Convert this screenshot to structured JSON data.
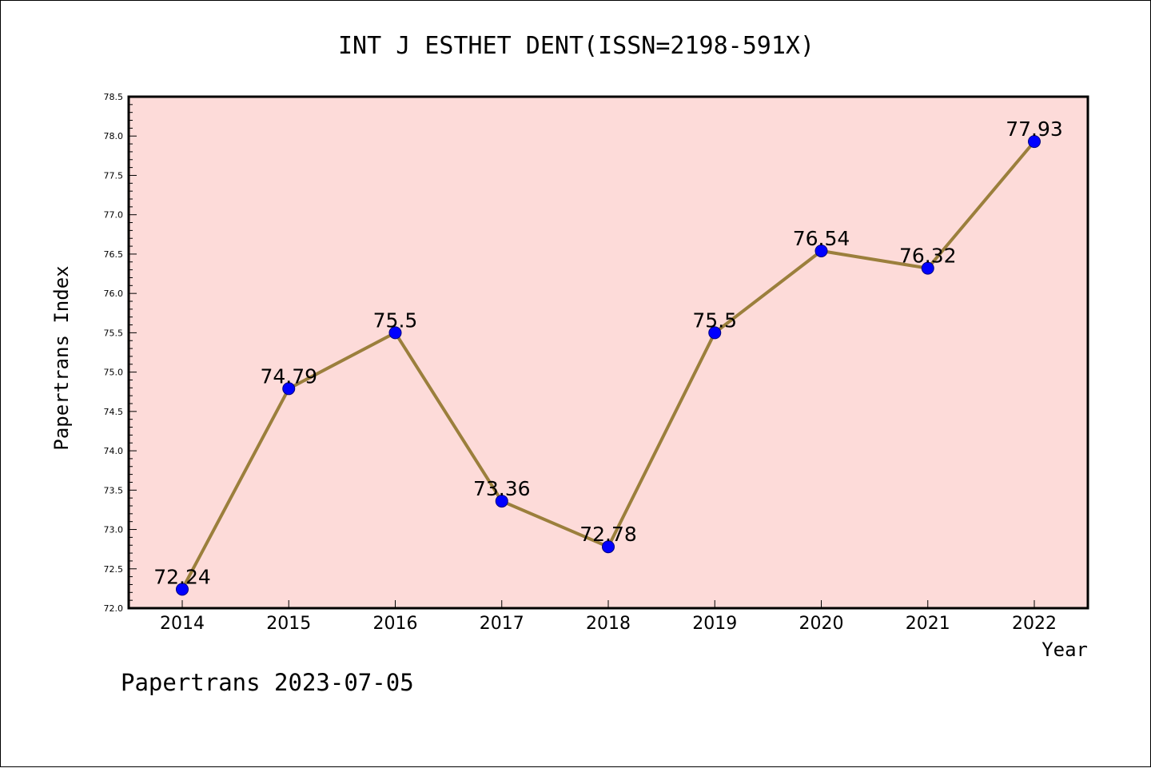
{
  "footer": "Papertrans 2023-07-05",
  "colors": {
    "plot_background": "#fddbd9",
    "line": "#9b7f3c",
    "marker_fill": "#0000ff",
    "marker_edge": "#000080",
    "axis": "#000000"
  },
  "chart_data": {
    "type": "line",
    "title": "INT J ESTHET DENT(ISSN=2198-591X)",
    "xlabel": "Year",
    "ylabel": "Papertrans Index",
    "x": [
      "2014",
      "2015",
      "2016",
      "2017",
      "2018",
      "2019",
      "2020",
      "2021",
      "2022"
    ],
    "series": [
      {
        "values": [
          72.24,
          74.79,
          75.5,
          73.36,
          72.78,
          75.5,
          76.54,
          76.32,
          77.93
        ],
        "labels": [
          "72.24",
          "74.79",
          "75.5",
          "73.36",
          "72.78",
          "75.5",
          "76.54",
          "76.32",
          "77.93"
        ]
      }
    ],
    "ylim": [
      72.0,
      78.5
    ],
    "y_ticks": [
      "72.0",
      "72.5",
      "73.0",
      "73.5",
      "74.0",
      "74.5",
      "75.0",
      "75.5",
      "76.0",
      "76.5",
      "77.0",
      "77.5",
      "78.0",
      "78.5"
    ],
    "markers": true,
    "grid": false,
    "legend": "none"
  }
}
